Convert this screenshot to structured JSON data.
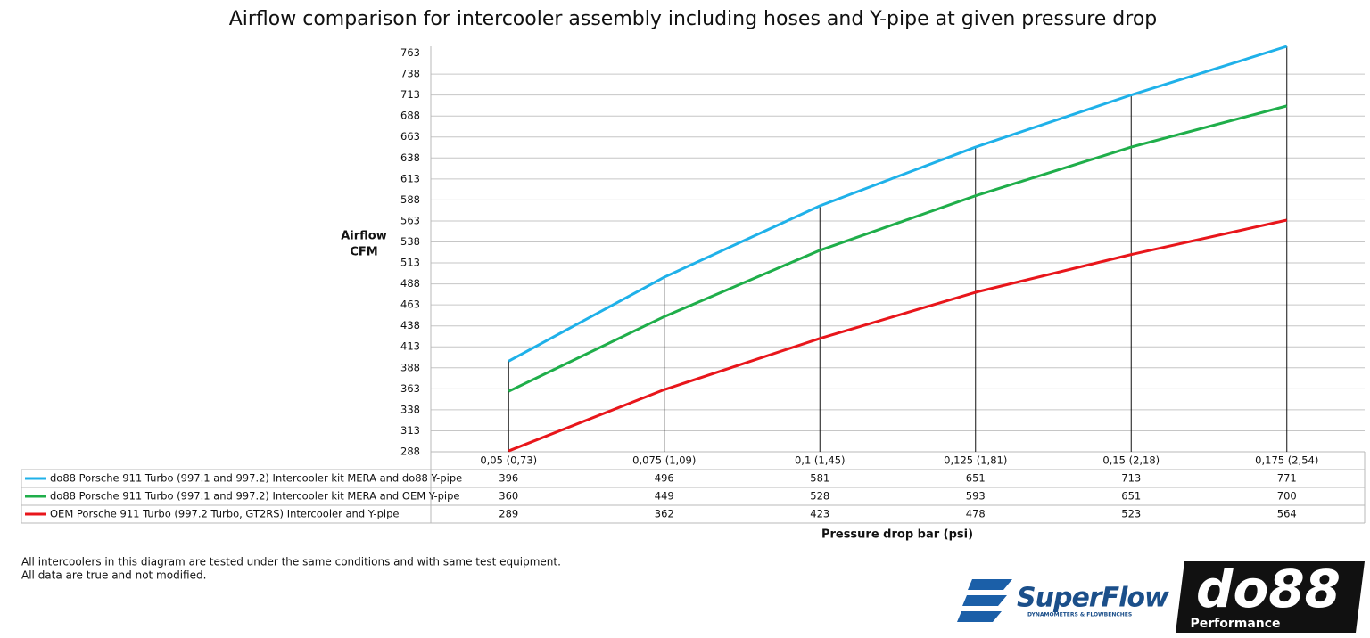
{
  "chart_data": {
    "type": "line",
    "title": "Airflow comparison for intercooler assembly including hoses and Y-pipe at given pressure drop",
    "y_label": [
      "Airflow",
      "CFM"
    ],
    "x_label": "Pressure drop bar (psi)",
    "categories": [
      "0,05 (0,73)",
      "0,075 (1,09)",
      "0,1 (1,45)",
      "0,125 (1,81)",
      "0,15 (2,18)",
      "0,175 (2,54)"
    ],
    "series": [
      {
        "name": "do88 Porsche 911 Turbo (997.1 and 997.2) Intercooler kit MERA and do88 Y-pipe",
        "color": "#1fb1e9",
        "values": [
          396,
          496,
          581,
          651,
          713,
          771
        ]
      },
      {
        "name": "do88 Porsche 911 Turbo (997.1 and 997.2) Intercooler kit MERA and OEM Y-pipe",
        "color": "#1fae4a",
        "values": [
          360,
          449,
          528,
          593,
          651,
          700
        ]
      },
      {
        "name": "OEM Porsche 911 Turbo (997.2 Turbo,  GT2RS) Intercooler and Y-pipe",
        "color": "#e8161b",
        "values": [
          289,
          362,
          423,
          478,
          523,
          564
        ]
      }
    ],
    "ylim": [
      288,
      771
    ],
    "yticks": [
      288,
      313,
      338,
      363,
      388,
      413,
      438,
      463,
      488,
      513,
      538,
      563,
      588,
      613,
      638,
      663,
      688,
      713,
      738,
      763
    ],
    "grid": true
  },
  "notes": [
    "All intercoolers in this diagram are tested under the same conditions and with same test equipment.",
    "All data are true and not modified."
  ],
  "logos": {
    "superflow": "SuperFlow",
    "superflow_tagline": "DYNAMOMETERS & FLOWBENCHES",
    "do88": "do88",
    "do88_tagline": "Performance"
  }
}
